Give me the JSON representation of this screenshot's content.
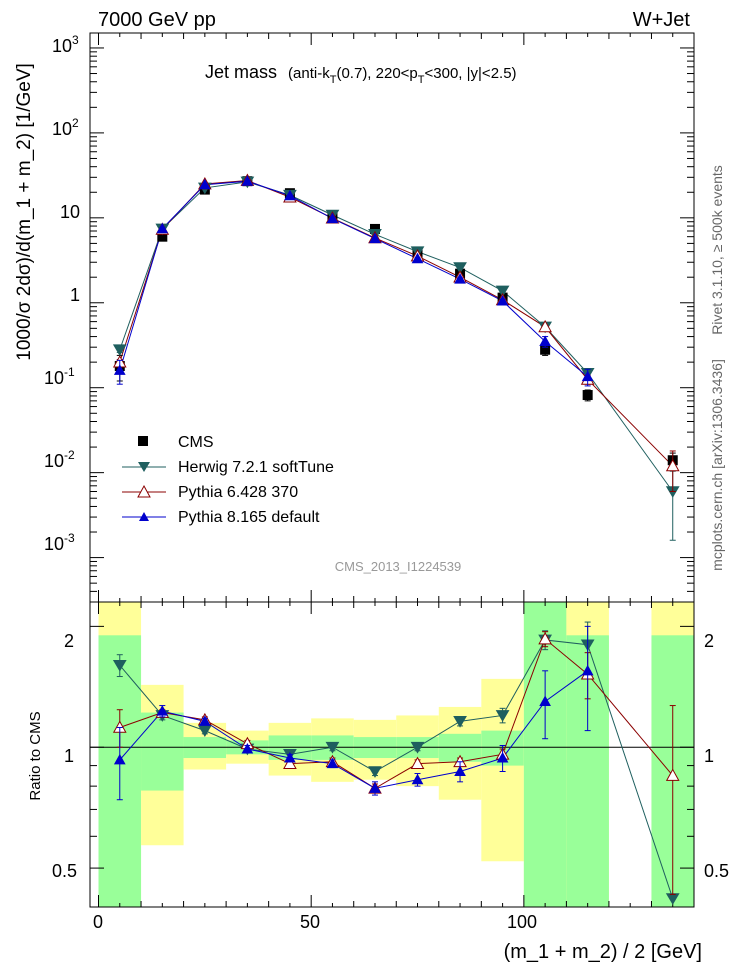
{
  "header": {
    "energy_label": "7000 GeV pp",
    "process_label": "W+Jet"
  },
  "plot_title": {
    "main": "Jet mass",
    "cuts_part1": "(anti-k",
    "cuts_sub1": "T",
    "cuts_part2": "(0.7), 220<p",
    "cuts_sub2": "T",
    "cuts_part3": "<300, |y|<2.5)"
  },
  "side_labels": {
    "rivet": "Rivet 3.1.10, ≥ 500k events",
    "source": "mcplots.cern.ch [arXiv:1306.3436]"
  },
  "watermark": "CMS_2013_I1224539",
  "axes": {
    "main_ylabel": "1000/σ 2dσ)/d(m_1 + m_2) [1/GeV]",
    "ratio_ylabel": "Ratio to CMS",
    "xlabel": "(m_1 + m_2) / 2 [GeV]",
    "x_ticks": [
      "0",
      "50",
      "100"
    ],
    "main_y_ticks": [
      "10",
      "1",
      "10",
      "1",
      "10",
      "10",
      "10"
    ],
    "main_y_tick_exps": [
      "3",
      "2",
      "",
      "",
      "-1",
      "-2",
      "-3"
    ],
    "ratio_y_ticks": [
      "2",
      "1",
      "0.5"
    ]
  },
  "legend": {
    "cms": "CMS",
    "herwig": "Herwig 7.2.1 softTune",
    "py6": "Pythia 6.428 370",
    "py8": "Pythia 8.165 default"
  },
  "colors": {
    "cms": "#000000",
    "herwig": "#1f5f5f",
    "py6": "#8b0000",
    "py8": "#0000cc",
    "band_inner": "#99ff99",
    "band_outer": "#ffff99"
  },
  "chart_data": {
    "type": "scatter",
    "x_range": [
      -2,
      140
    ],
    "main_y_range": [
      0.0003,
      1500
    ],
    "main_y_scale": "log",
    "ratio_y_range": [
      0.4,
      2.3
    ],
    "ratio_y_scale": "log",
    "bins": [
      [
        0,
        10
      ],
      [
        10,
        20
      ],
      [
        20,
        30
      ],
      [
        30,
        40
      ],
      [
        40,
        50
      ],
      [
        50,
        60
      ],
      [
        60,
        70
      ],
      [
        70,
        80
      ],
      [
        80,
        90
      ],
      [
        90,
        100
      ],
      [
        100,
        110
      ],
      [
        110,
        120
      ],
      [
        130,
        140
      ]
    ],
    "x": [
      5,
      15,
      25,
      35,
      45,
      55,
      65,
      75,
      85,
      95,
      105,
      115,
      135
    ],
    "cms": {
      "name": "CMS",
      "values": [
        0.18,
        6.0,
        21.5,
        27.0,
        19.5,
        10.8,
        7.4,
        3.85,
        2.2,
        1.15,
        0.28,
        0.082,
        0.014
      ],
      "err_low": [
        0.06,
        0.3,
        1.0,
        1.2,
        0.8,
        0.5,
        0.3,
        0.2,
        0.15,
        0.1,
        0.04,
        0.012,
        0.003
      ],
      "err_high": [
        0.06,
        0.3,
        1.0,
        1.2,
        0.8,
        0.5,
        0.3,
        0.2,
        0.15,
        0.1,
        0.04,
        0.012,
        0.003
      ]
    },
    "herwig": {
      "name": "Herwig 7.2.1 softTune",
      "values": [
        0.28,
        7.4,
        22.5,
        26.5,
        18.5,
        10.8,
        6.4,
        4.0,
        2.6,
        1.38,
        0.52,
        0.148,
        0.006
      ],
      "err_low": [
        0.02,
        0.2,
        0.3,
        0.3,
        0.3,
        0.2,
        0.1,
        0.1,
        0.08,
        0.06,
        0.03,
        0.02,
        0.0044
      ],
      "err_high": [
        0.02,
        0.2,
        0.3,
        0.3,
        0.3,
        0.2,
        0.1,
        0.1,
        0.08,
        0.06,
        0.03,
        0.02,
        0.0044
      ]
    },
    "py6": {
      "name": "Pythia 6.428 370",
      "values": [
        0.2,
        7.3,
        25.0,
        27.5,
        17.5,
        9.9,
        5.8,
        3.55,
        2.0,
        1.08,
        0.52,
        0.125,
        0.012
      ],
      "err_low": [
        0.015,
        0.1,
        0.3,
        0.3,
        0.2,
        0.1,
        0.08,
        0.06,
        0.04,
        0.03,
        0.02,
        0.015,
        0.006
      ],
      "err_high": [
        0.015,
        0.1,
        0.3,
        0.3,
        0.2,
        0.1,
        0.08,
        0.06,
        0.04,
        0.03,
        0.02,
        0.015,
        0.006
      ]
    },
    "py8": {
      "name": "Pythia 8.165 default",
      "values": [
        0.16,
        7.45,
        24.5,
        27.0,
        18.2,
        9.8,
        5.7,
        3.3,
        1.9,
        1.05,
        0.35,
        0.135,
        0.0
      ],
      "err_low": [
        0.05,
        0.2,
        0.4,
        0.4,
        0.3,
        0.2,
        0.1,
        0.08,
        0.06,
        0.05,
        0.05,
        0.03,
        0.0
      ],
      "err_high": [
        0.05,
        0.2,
        0.4,
        0.4,
        0.3,
        0.2,
        0.1,
        0.08,
        0.06,
        0.05,
        0.05,
        0.03,
        0.0
      ]
    },
    "ratio": {
      "herwig": {
        "values": [
          1.6,
          1.2,
          1.1,
          0.99,
          0.96,
          1.0,
          0.87,
          1.0,
          1.16,
          1.2,
          1.85,
          1.8,
          0.42
        ],
        "err_low": [
          0.1,
          0.03,
          0.02,
          0.02,
          0.02,
          0.02,
          0.02,
          0.02,
          0.03,
          0.05,
          0.1,
          0.25,
          0.0
        ],
        "err_high": [
          0.1,
          0.03,
          0.02,
          0.02,
          0.02,
          0.02,
          0.02,
          0.02,
          0.03,
          0.05,
          0.1,
          0.25,
          0.0
        ]
      },
      "py6": {
        "values": [
          1.12,
          1.22,
          1.17,
          1.02,
          0.91,
          0.92,
          0.79,
          0.91,
          0.92,
          0.96,
          1.86,
          1.52,
          0.85
        ]
      },
      "py6_err": [
        0.12,
        0.02,
        0.02,
        0.02,
        0.02,
        0.02,
        0.02,
        0.02,
        0.02,
        0.03,
        0.08,
        0.2,
        0.42
      ],
      "py8": {
        "values": [
          0.93,
          1.23,
          1.16,
          0.99,
          0.94,
          0.91,
          0.79,
          0.83,
          0.87,
          0.94,
          1.3,
          1.55,
          null
        ],
        "err": [
          0.19,
          0.04,
          0.02,
          0.02,
          0.02,
          0.02,
          0.03,
          0.03,
          0.05,
          0.07,
          0.25,
          0.45,
          0.0
        ]
      },
      "band_inner": [
        [
          0.4,
          1.9
        ],
        [
          0.78,
          1.22
        ],
        [
          0.94,
          1.06
        ],
        [
          0.96,
          1.04
        ],
        [
          0.93,
          1.07
        ],
        [
          0.93,
          1.07
        ],
        [
          0.94,
          1.06
        ],
        [
          0.94,
          1.06
        ],
        [
          0.92,
          1.08
        ],
        [
          0.9,
          1.1
        ],
        [
          0.4,
          2.3
        ],
        [
          0.4,
          1.9
        ],
        [
          0.4,
          1.9
        ]
      ],
      "band_outer": [
        [
          0.4,
          2.3
        ],
        [
          0.57,
          1.43
        ],
        [
          0.88,
          1.15
        ],
        [
          0.91,
          1.1
        ],
        [
          0.85,
          1.15
        ],
        [
          0.82,
          1.18
        ],
        [
          0.83,
          1.17
        ],
        [
          0.8,
          1.2
        ],
        [
          0.74,
          1.26
        ],
        [
          0.52,
          1.48
        ],
        [
          0.4,
          2.3
        ],
        [
          0.4,
          2.3
        ],
        [
          0.4,
          2.3
        ]
      ]
    }
  }
}
